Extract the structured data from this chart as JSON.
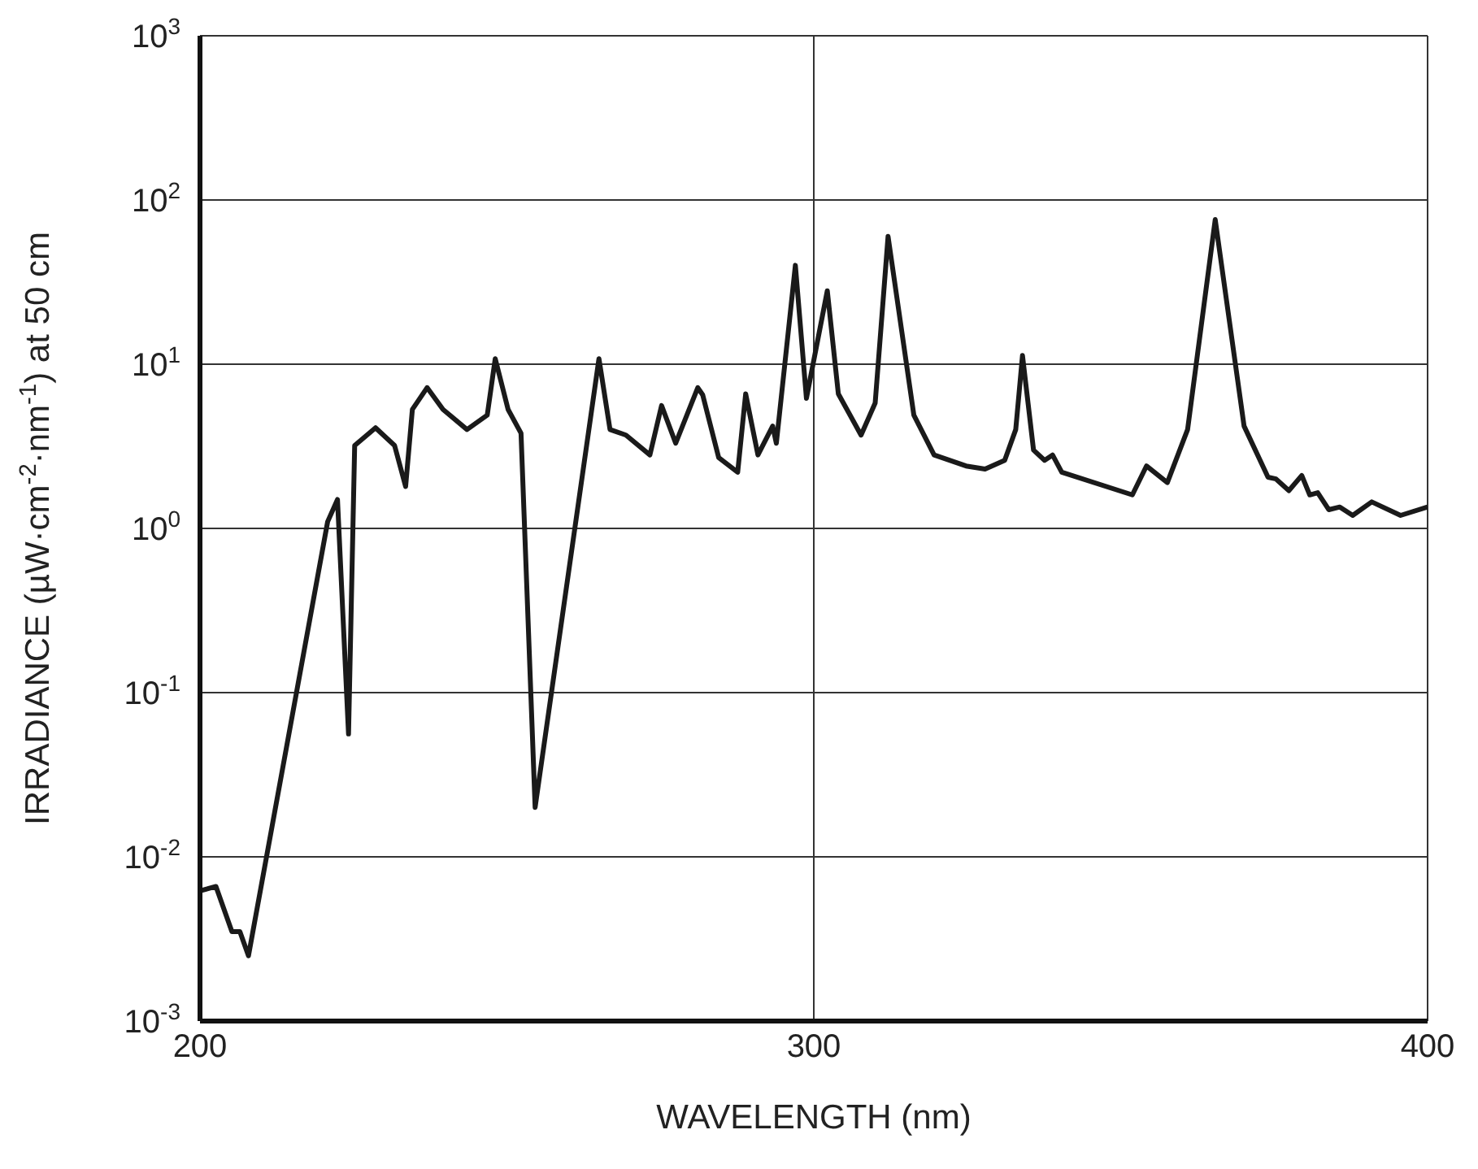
{
  "chart_data": {
    "type": "line",
    "xlabel": "WAVELENGTH (nm)",
    "ylabel": "IRRADIANCE (µW·cm$^{-2}$·nm$^{-1}$) at 50 cm",
    "log": "y",
    "grid": true,
    "xlim": [
      200,
      400
    ],
    "xticks": [
      200,
      300,
      400
    ],
    "ylim": [
      0.001,
      1000
    ],
    "yticks": [
      {
        "value": 0.001,
        "label": "10$^{-3}$"
      },
      {
        "value": 0.01,
        "label": "10$^{-2}$"
      },
      {
        "value": 0.1,
        "label": "10$^{-1}$"
      },
      {
        "value": 1,
        "label": "10$^{0}$"
      },
      {
        "value": 10,
        "label": "10$^{1}$"
      },
      {
        "value": 100,
        "label": "10$^{2}$"
      },
      {
        "value": 1000,
        "label": "10$^{3}$"
      }
    ],
    "series": [
      {
        "color": "#1a1a1a",
        "x": [
          200,
          202.6,
          205.2,
          206.5,
          207.9,
          220.8,
          222.4,
          224.2,
          225.2,
          228.6,
          231.7,
          233.5,
          234.6,
          237,
          239.6,
          243.5,
          246.8,
          248.1,
          250.2,
          252.3,
          254.6,
          265,
          266.8,
          269.4,
          273.3,
          275.2,
          277.5,
          281.1,
          281.9,
          284.5,
          287.6,
          288.9,
          290.9,
          293.3,
          293.9,
          297,
          298.8,
          302.2,
          304,
          307.7,
          310,
          312.1,
          316.3,
          319.6,
          324.8,
          327.9,
          331.1,
          332.9,
          334,
          335.8,
          337.6,
          338.9,
          340.4,
          351.9,
          354.2,
          357.6,
          360.9,
          365.4,
          370.1,
          374,
          375.3,
          377.4,
          379.5,
          380.8,
          382.1,
          383.9,
          385.7,
          387.8,
          390.9,
          395.6,
          400
        ],
        "values": [
          0.0062,
          0.0066,
          0.0035,
          0.0035,
          0.0025,
          1.1,
          1.5,
          0.056,
          3.2,
          4.1,
          3.2,
          1.8,
          5.3,
          7.2,
          5.3,
          4.0,
          4.9,
          10.8,
          5.3,
          3.8,
          0.02,
          10.8,
          4.0,
          3.7,
          2.8,
          5.6,
          3.3,
          7.2,
          6.5,
          2.7,
          2.2,
          6.6,
          2.8,
          4.2,
          3.3,
          40,
          6.2,
          28,
          6.6,
          3.7,
          5.8,
          60,
          4.9,
          2.8,
          2.4,
          2.3,
          2.6,
          4.0,
          11.3,
          3.0,
          2.6,
          2.8,
          2.2,
          1.6,
          2.4,
          1.9,
          4.0,
          76,
          4.2,
          2.05,
          2.0,
          1.7,
          2.1,
          1.6,
          1.65,
          1.3,
          1.35,
          1.2,
          1.45,
          1.2,
          1.35
        ]
      }
    ]
  }
}
